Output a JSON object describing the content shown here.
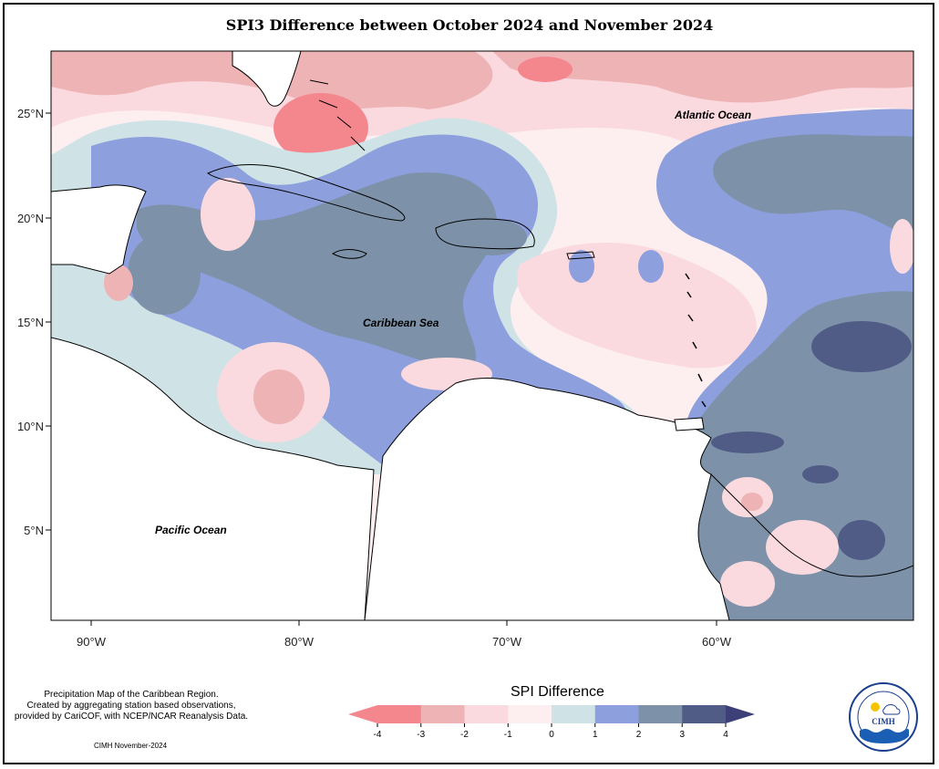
{
  "title": "SPI3 Difference between October 2024 and November 2024",
  "axes": {
    "x_ticks": [
      "90°W",
      "80°W",
      "70°W",
      "60°W"
    ],
    "y_ticks": [
      "25°N",
      "20°N",
      "15°N",
      "10°N",
      "5°N"
    ]
  },
  "map_labels": {
    "atlantic": "Atlantic Ocean",
    "caribbean": "Caribbean Sea",
    "pacific": "Pacific Ocean"
  },
  "caption": {
    "line1": "Precipitation Map of the Caribbean Region.",
    "line2": "Created by aggregating station based observations,",
    "line3": "provided by CariCOF, with NCEP/NCAR Reanalysis Data.",
    "stamp": "CIMH November-2024"
  },
  "legend": {
    "title": "SPI Difference",
    "ticks": [
      "-4",
      "-3",
      "-2",
      "-1",
      "0",
      "1",
      "2",
      "3",
      "4"
    ],
    "colors": [
      "#f4868e",
      "#eeb3b5",
      "#fadadf",
      "#fdeef0",
      "#cfe3e6",
      "#8d9fdc",
      "#7d92a9",
      "#515c86"
    ],
    "arrow_left_color": "#f4868e",
    "arrow_right_color": "#3d3f78"
  },
  "logo": {
    "text": "CIMH",
    "ring_text": "Caribbean Institute for Meteorology and Hydrology"
  }
}
